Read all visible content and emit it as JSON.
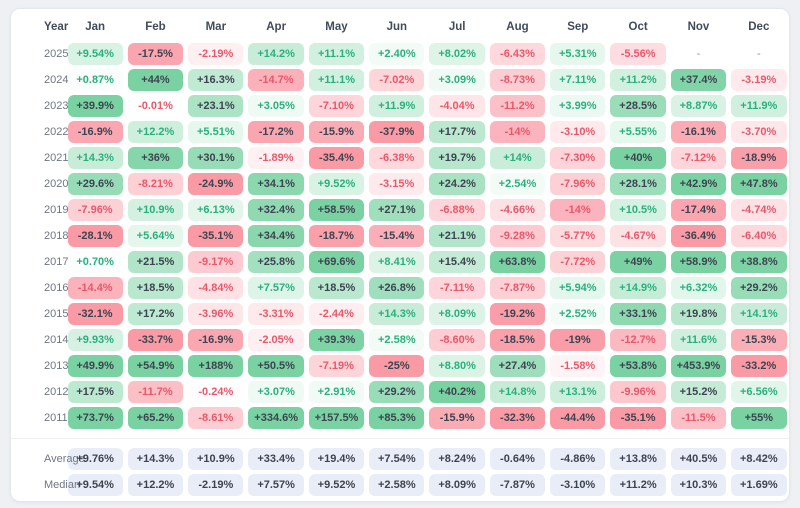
{
  "chart_data": {
    "type": "heatmap",
    "columns": [
      "Year",
      "Jan",
      "Feb",
      "Mar",
      "Apr",
      "May",
      "Jun",
      "Jul",
      "Aug",
      "Sep",
      "Oct",
      "Nov",
      "Dec"
    ],
    "rows": [
      {
        "label": "2025",
        "values": [
          "+9.54%",
          "-17.5%",
          "-2.19%",
          "+14.2%",
          "+11.1%",
          "+2.40%",
          "+8.02%",
          "-6.43%",
          "+5.31%",
          "-5.56%",
          "-",
          "-"
        ]
      },
      {
        "label": "2024",
        "values": [
          "+0.87%",
          "+44%",
          "+16.3%",
          "-14.7%",
          "+11.1%",
          "-7.02%",
          "+3.09%",
          "-8.73%",
          "+7.11%",
          "+11.2%",
          "+37.4%",
          "-3.19%"
        ]
      },
      {
        "label": "2023",
        "values": [
          "+39.9%",
          "-0.01%",
          "+23.1%",
          "+3.05%",
          "-7.10%",
          "+11.9%",
          "-4.04%",
          "-11.2%",
          "+3.99%",
          "+28.5%",
          "+8.87%",
          "+11.9%"
        ]
      },
      {
        "label": "2022",
        "values": [
          "-16.9%",
          "+12.2%",
          "+5.51%",
          "-17.2%",
          "-15.9%",
          "-37.9%",
          "+17.7%",
          "-14%",
          "-3.10%",
          "+5.55%",
          "-16.1%",
          "-3.70%"
        ]
      },
      {
        "label": "2021",
        "values": [
          "+14.3%",
          "+36%",
          "+30.1%",
          "-1.89%",
          "-35.4%",
          "-6.38%",
          "+19.7%",
          "+14%",
          "-7.30%",
          "+40%",
          "-7.12%",
          "-18.9%"
        ]
      },
      {
        "label": "2020",
        "values": [
          "+29.6%",
          "-8.21%",
          "-24.9%",
          "+34.1%",
          "+9.52%",
          "-3.15%",
          "+24.2%",
          "+2.54%",
          "-7.96%",
          "+28.1%",
          "+42.9%",
          "+47.8%"
        ]
      },
      {
        "label": "2019",
        "values": [
          "-7.96%",
          "+10.9%",
          "+6.13%",
          "+32.4%",
          "+58.5%",
          "+27.1%",
          "-6.88%",
          "-4.66%",
          "-14%",
          "+10.5%",
          "-17.4%",
          "-4.74%"
        ]
      },
      {
        "label": "2018",
        "values": [
          "-28.1%",
          "+5.64%",
          "-35.1%",
          "+34.4%",
          "-18.7%",
          "-15.4%",
          "+21.1%",
          "-9.28%",
          "-5.77%",
          "-4.67%",
          "-36.4%",
          "-6.40%"
        ]
      },
      {
        "label": "2017",
        "values": [
          "+0.70%",
          "+21.5%",
          "-9.17%",
          "+25.8%",
          "+69.6%",
          "+8.41%",
          "+15.4%",
          "+63.8%",
          "-7.72%",
          "+49%",
          "+58.9%",
          "+38.8%"
        ]
      },
      {
        "label": "2016",
        "values": [
          "-14.4%",
          "+18.5%",
          "-4.84%",
          "+7.57%",
          "+18.5%",
          "+26.8%",
          "-7.11%",
          "-7.87%",
          "+5.94%",
          "+14.9%",
          "+6.32%",
          "+29.2%"
        ]
      },
      {
        "label": "2015",
        "values": [
          "-32.1%",
          "+17.2%",
          "-3.96%",
          "-3.31%",
          "-2.44%",
          "+14.3%",
          "+8.09%",
          "-19.2%",
          "+2.52%",
          "+33.1%",
          "+19.8%",
          "+14.1%"
        ]
      },
      {
        "label": "2014",
        "values": [
          "+9.93%",
          "-33.7%",
          "-16.9%",
          "-2.05%",
          "+39.3%",
          "+2.58%",
          "-8.60%",
          "-18.5%",
          "-19%",
          "-12.7%",
          "+11.6%",
          "-15.3%"
        ]
      },
      {
        "label": "2013",
        "values": [
          "+49.9%",
          "+54.9%",
          "+188%",
          "+50.5%",
          "-7.19%",
          "-25%",
          "+8.80%",
          "+27.4%",
          "-1.58%",
          "+53.8%",
          "+453.9%",
          "-33.2%"
        ]
      },
      {
        "label": "2012",
        "values": [
          "+17.5%",
          "-11.7%",
          "-0.24%",
          "+3.07%",
          "+2.91%",
          "+29.2%",
          "+40.2%",
          "+14.8%",
          "+13.1%",
          "-9.96%",
          "+15.2%",
          "+6.56%"
        ]
      },
      {
        "label": "2011",
        "values": [
          "+73.7%",
          "+65.2%",
          "-8.61%",
          "+334.6%",
          "+157.5%",
          "+85.3%",
          "-15.9%",
          "-32.3%",
          "-44.4%",
          "-35.1%",
          "-11.5%",
          "+55%"
        ]
      }
    ],
    "summary": [
      {
        "label": "Average",
        "values": [
          "+9.76%",
          "+14.3%",
          "+10.9%",
          "+33.4%",
          "+19.4%",
          "+7.54%",
          "+8.24%",
          "-0.64%",
          "-4.86%",
          "+13.8%",
          "+40.5%",
          "+8.42%"
        ]
      },
      {
        "label": "Median",
        "values": [
          "+9.54%",
          "+12.2%",
          "-2.19%",
          "+7.57%",
          "+9.52%",
          "+2.58%",
          "+8.09%",
          "-7.87%",
          "-3.10%",
          "+11.2%",
          "+10.3%",
          "+1.69%"
        ]
      }
    ]
  },
  "colors": {
    "positive_strong": "#7ad2a2",
    "negative_strong": "#f99aa5",
    "positive_text": "#2ab07e",
    "negative_text": "#e8586b",
    "dark_text": "#3d4451",
    "summary_bg": "#e9edf8",
    "muted_text": "#8a909c",
    "header_text": "#414b5a",
    "row_label_text": "#6f7683",
    "card_bg": "#ffffff",
    "page_bg": "#eef0f3"
  }
}
